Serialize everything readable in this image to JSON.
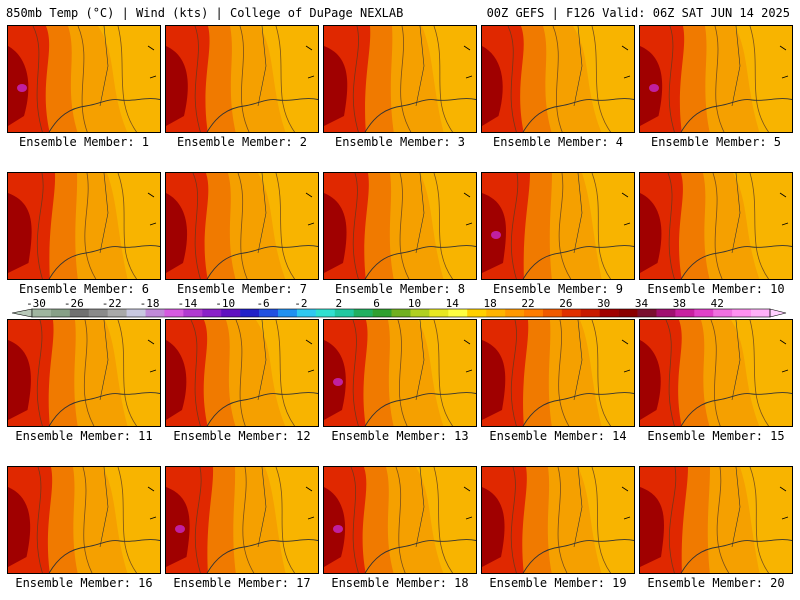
{
  "header": {
    "left_title": "850mb Temp (°C) | Wind (kts) | College of DuPage NEXLAB",
    "right_title": "00Z GEFS | F126 Valid: 06Z SAT JUN 14 2025"
  },
  "panels": [
    {
      "label": "Ensemble Member: 1"
    },
    {
      "label": "Ensemble Member: 2"
    },
    {
      "label": "Ensemble Member: 3"
    },
    {
      "label": "Ensemble Member: 4"
    },
    {
      "label": "Ensemble Member: 5"
    },
    {
      "label": "Ensemble Member: 6"
    },
    {
      "label": "Ensemble Member: 7"
    },
    {
      "label": "Ensemble Member: 8"
    },
    {
      "label": "Ensemble Member: 9"
    },
    {
      "label": "Ensemble Member: 10"
    },
    {
      "label": "Ensemble Member: 11"
    },
    {
      "label": "Ensemble Member: 12"
    },
    {
      "label": "Ensemble Member: 13"
    },
    {
      "label": "Ensemble Member: 14"
    },
    {
      "label": "Ensemble Member: 15"
    },
    {
      "label": "Ensemble Member: 16"
    },
    {
      "label": "Ensemble Member: 17"
    },
    {
      "label": "Ensemble Member: 18"
    },
    {
      "label": "Ensemble Member: 19"
    },
    {
      "label": "Ensemble Member: 20"
    }
  ],
  "colorbar": {
    "ticks": [
      "-30",
      "-26",
      "-22",
      "-18",
      "-14",
      "-10",
      "-6",
      "-2",
      "2",
      "6",
      "10",
      "14",
      "18",
      "22",
      "26",
      "30",
      "34",
      "38",
      "42"
    ],
    "colors": [
      "#9fb59f",
      "#87a087",
      "#707070",
      "#8a8a8a",
      "#a9a9a9",
      "#c8c8e0",
      "#c08ad8",
      "#d65ae0",
      "#b03ad0",
      "#8a20c8",
      "#6010c0",
      "#2020c8",
      "#2050e0",
      "#2090f0",
      "#30c8f0",
      "#30e0d0",
      "#20c8a0",
      "#20b060",
      "#30a030",
      "#70b020",
      "#b0d020",
      "#e8e820",
      "#ffff40",
      "#ffd000",
      "#ffb400",
      "#ff9800",
      "#ff7c00",
      "#f05a00",
      "#e03000",
      "#c81a00",
      "#a00000",
      "#8a0000",
      "#7a1030",
      "#a01070",
      "#c820a0",
      "#e040c8",
      "#f070e0",
      "#ff90f0",
      "#ffb0f8"
    ]
  }
}
